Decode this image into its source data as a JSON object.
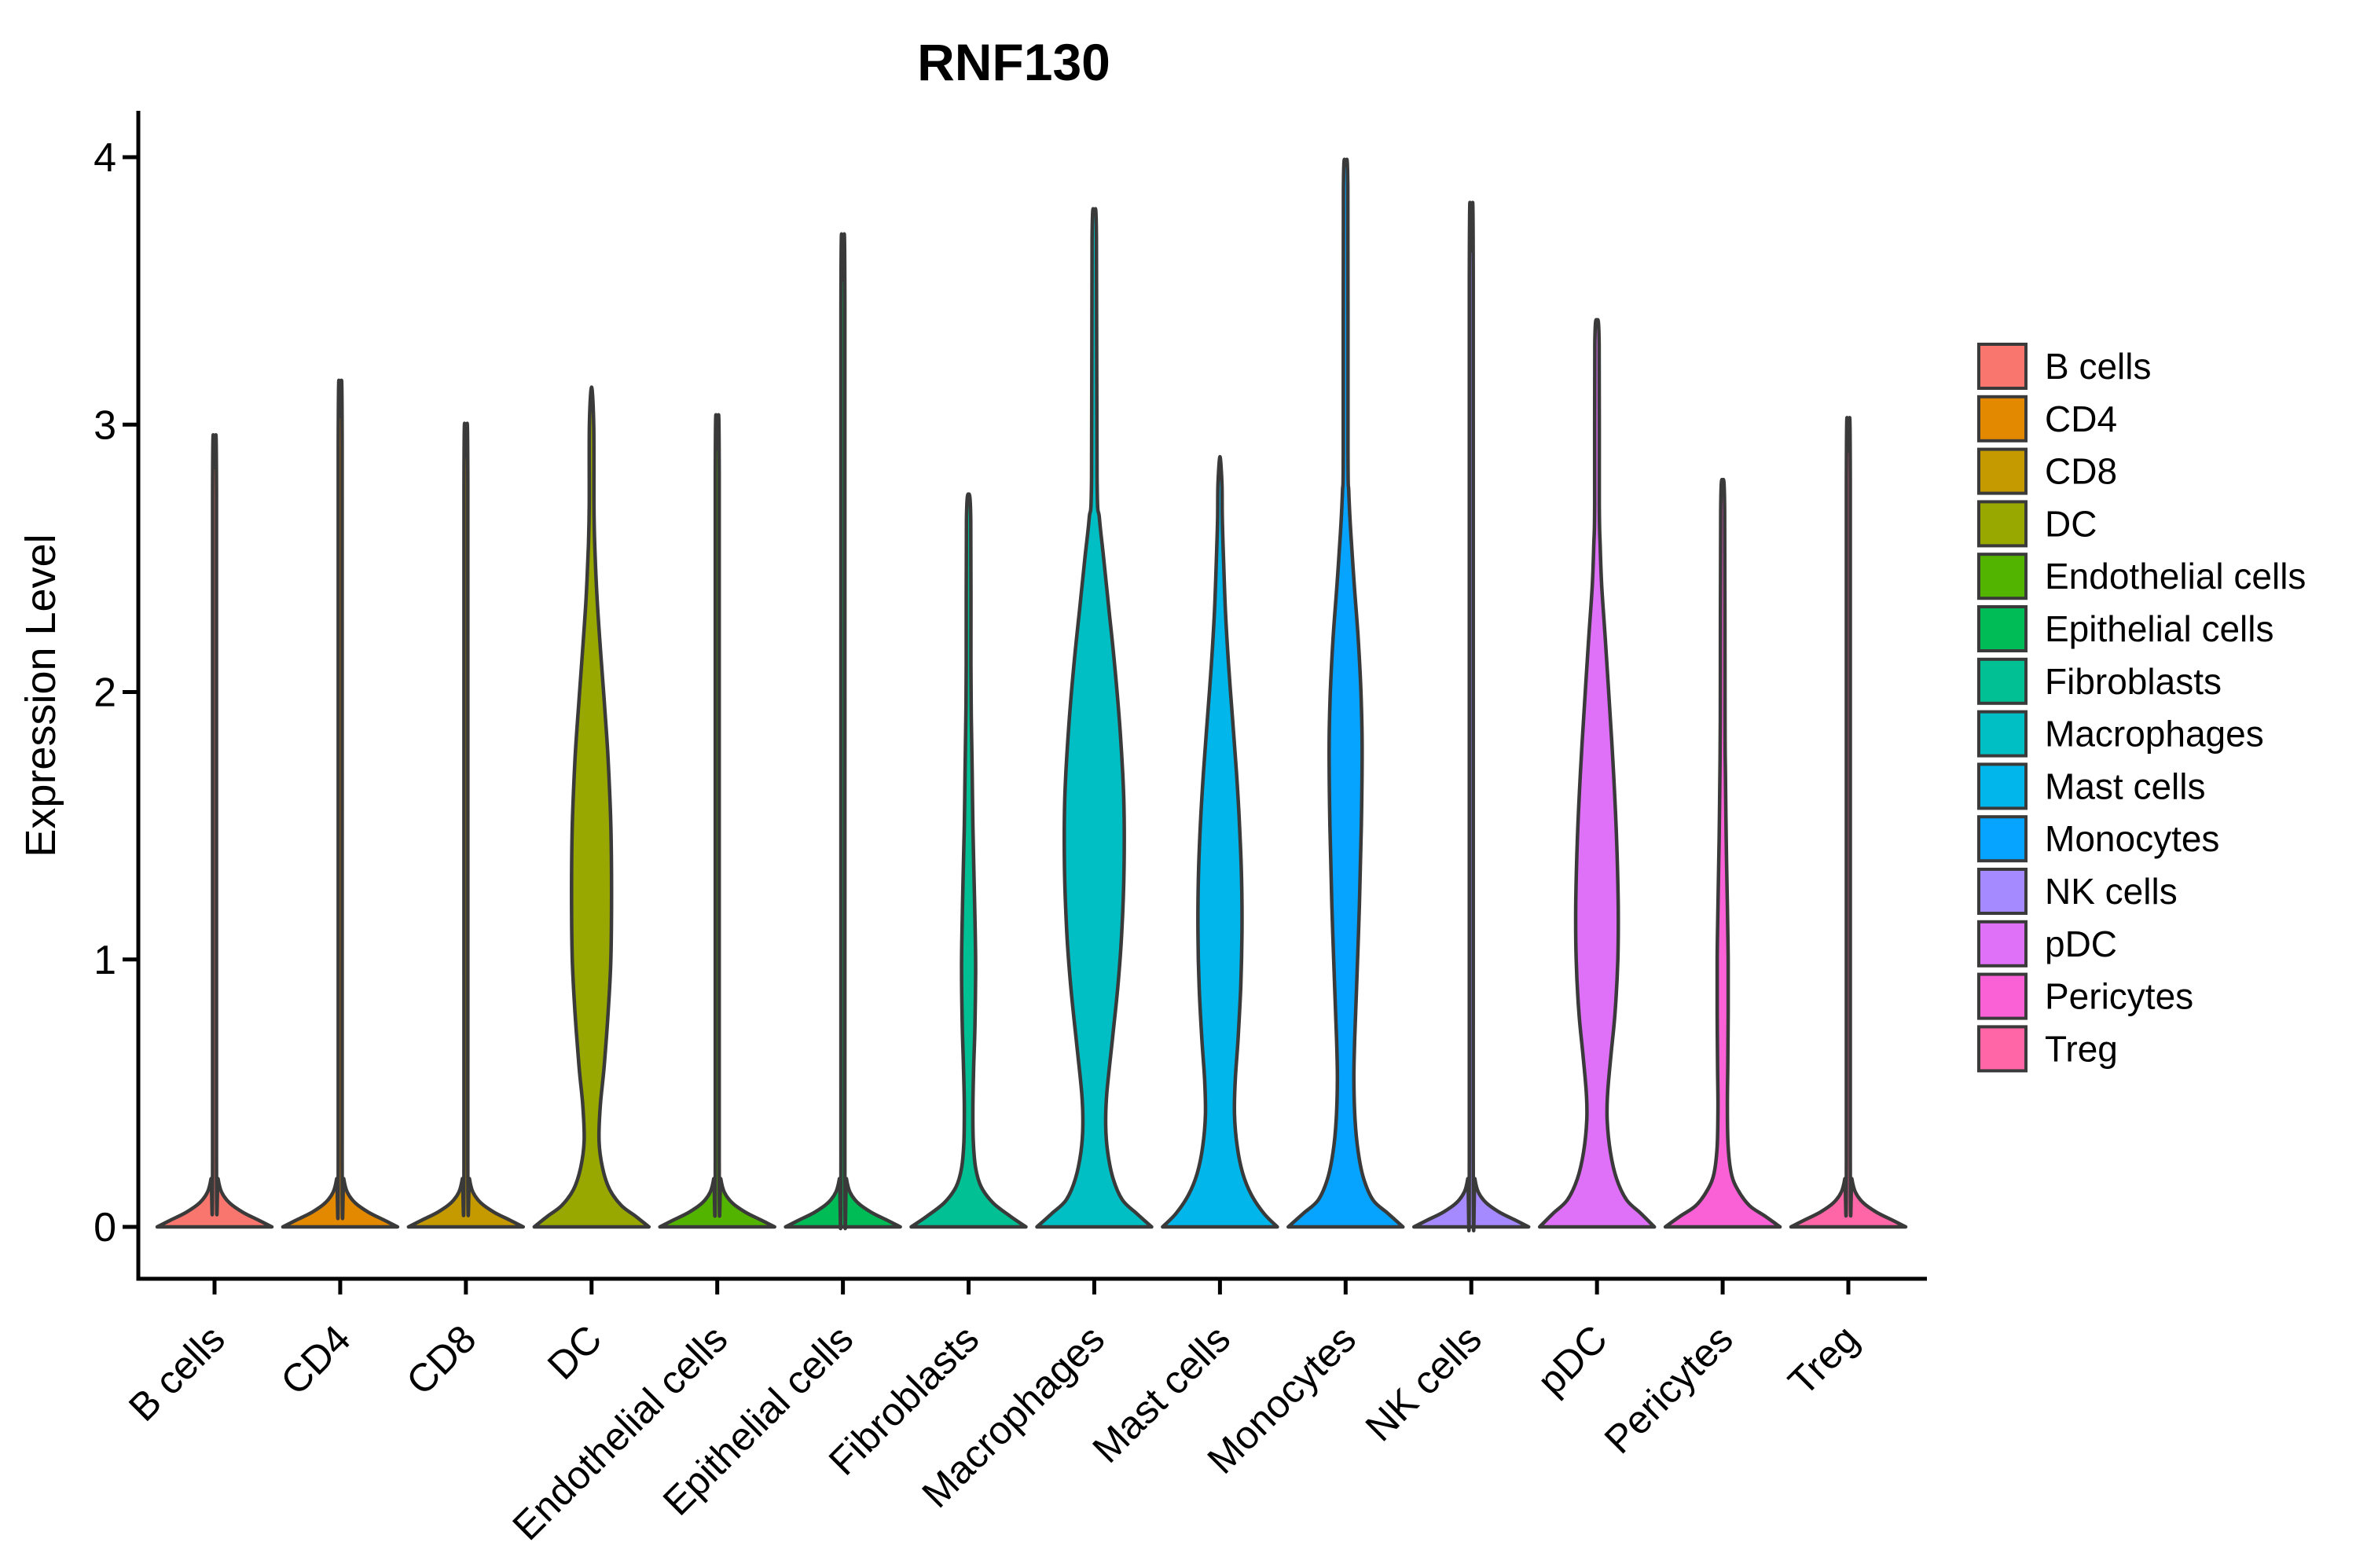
{
  "title": "RNF130",
  "chart_data": {
    "type": "violin",
    "title": "RNF130",
    "xlabel": "",
    "ylabel": "Expression Level",
    "ylim": [
      0,
      4
    ],
    "y_ticks": [
      0,
      1,
      2,
      3,
      4
    ],
    "x_tick_rotation_deg": 45,
    "grid": false,
    "legend_position": "right",
    "background": "#FFFFFF",
    "outline_color": "#3A3A3A",
    "categories": [
      "B cells",
      "CD4",
      "CD8",
      "DC",
      "Endothelial cells",
      "Epithelial cells",
      "Fibroblasts",
      "Macrophages",
      "Mast cells",
      "Monocytes",
      "NK cells",
      "pDC",
      "Pericytes",
      "Treg"
    ],
    "series": [
      {
        "name": "B cells",
        "color": "#F8766D",
        "max_expression": 2.84,
        "density_profile": [
          [
            0,
            1
          ],
          [
            0.025,
            0.77
          ],
          [
            0.055,
            0.49
          ],
          [
            0.09,
            0.26
          ],
          [
            0.13,
            0.123
          ],
          [
            0.18,
            0.062
          ],
          [
            0.25,
            0.034
          ],
          [
            2.74,
            0.034
          ],
          [
            2.84,
            0
          ]
        ]
      },
      {
        "name": "CD4",
        "color": "#E38900",
        "max_expression": 3.03,
        "density_profile": [
          [
            0,
            1
          ],
          [
            0.025,
            0.77
          ],
          [
            0.055,
            0.49
          ],
          [
            0.09,
            0.26
          ],
          [
            0.13,
            0.123
          ],
          [
            0.18,
            0.062
          ],
          [
            0.25,
            0.034
          ],
          [
            2.93,
            0.034
          ],
          [
            3.03,
            0
          ]
        ]
      },
      {
        "name": "CD8",
        "color": "#C49A00",
        "max_expression": 2.88,
        "density_profile": [
          [
            0,
            1
          ],
          [
            0.025,
            0.77
          ],
          [
            0.055,
            0.49
          ],
          [
            0.09,
            0.26
          ],
          [
            0.13,
            0.123
          ],
          [
            0.18,
            0.062
          ],
          [
            0.25,
            0.034
          ],
          [
            2.78,
            0.034
          ],
          [
            2.88,
            0
          ]
        ]
      },
      {
        "name": "DC",
        "color": "#99A800",
        "max_expression": 3.14,
        "density_profile": [
          [
            0,
            1
          ],
          [
            0.04,
            0.767
          ],
          [
            0.08,
            0.52
          ],
          [
            0.14,
            0.315
          ],
          [
            0.22,
            0.192
          ],
          [
            0.32,
            0.13
          ],
          [
            0.45,
            0.151
          ],
          [
            0.6,
            0.219
          ],
          [
            0.8,
            0.288
          ],
          [
            1.0,
            0.336
          ],
          [
            1.25,
            0.349
          ],
          [
            1.5,
            0.336
          ],
          [
            1.75,
            0.288
          ],
          [
            1.95,
            0.226
          ],
          [
            2.15,
            0.158
          ],
          [
            2.35,
            0.096
          ],
          [
            2.55,
            0.055
          ],
          [
            2.7,
            0.041
          ],
          [
            3.0,
            0.038
          ],
          [
            3.14,
            0
          ]
        ]
      },
      {
        "name": "Endothelial cells",
        "color": "#53B400",
        "max_expression": 2.91,
        "density_profile": [
          [
            0,
            1
          ],
          [
            0.025,
            0.77
          ],
          [
            0.055,
            0.49
          ],
          [
            0.09,
            0.26
          ],
          [
            0.13,
            0.123
          ],
          [
            0.18,
            0.062
          ],
          [
            0.25,
            0.034
          ],
          [
            2.81,
            0.034
          ],
          [
            2.91,
            0
          ]
        ]
      },
      {
        "name": "Epithelial cells",
        "color": "#00BC56",
        "max_expression": 3.54,
        "density_profile": [
          [
            0,
            1
          ],
          [
            0.025,
            0.77
          ],
          [
            0.055,
            0.49
          ],
          [
            0.09,
            0.26
          ],
          [
            0.13,
            0.123
          ],
          [
            0.18,
            0.062
          ],
          [
            0.25,
            0.034
          ],
          [
            3.44,
            0.034
          ],
          [
            3.54,
            0
          ]
        ]
      },
      {
        "name": "Fibroblasts",
        "color": "#00C094",
        "max_expression": 2.74,
        "density_profile": [
          [
            0,
            1
          ],
          [
            0.04,
            0.726
          ],
          [
            0.09,
            0.425
          ],
          [
            0.15,
            0.219
          ],
          [
            0.22,
            0.123
          ],
          [
            0.32,
            0.082
          ],
          [
            0.45,
            0.075
          ],
          [
            0.6,
            0.089
          ],
          [
            0.75,
            0.11
          ],
          [
            0.95,
            0.123
          ],
          [
            1.1,
            0.116
          ],
          [
            1.3,
            0.096
          ],
          [
            1.5,
            0.075
          ],
          [
            1.7,
            0.062
          ],
          [
            1.9,
            0.048
          ],
          [
            2.1,
            0.041
          ],
          [
            2.64,
            0.038
          ],
          [
            2.74,
            0
          ]
        ]
      },
      {
        "name": "Macrophages",
        "color": "#00BFC4",
        "max_expression": 3.79,
        "density_profile": [
          [
            0,
            1
          ],
          [
            0.05,
            0.74
          ],
          [
            0.1,
            0.493
          ],
          [
            0.18,
            0.329
          ],
          [
            0.28,
            0.233
          ],
          [
            0.38,
            0.199
          ],
          [
            0.5,
            0.219
          ],
          [
            0.7,
            0.315
          ],
          [
            0.9,
            0.411
          ],
          [
            1.1,
            0.479
          ],
          [
            1.35,
            0.52
          ],
          [
            1.6,
            0.514
          ],
          [
            1.85,
            0.452
          ],
          [
            2.1,
            0.356
          ],
          [
            2.3,
            0.26
          ],
          [
            2.5,
            0.164
          ],
          [
            2.65,
            0.089
          ],
          [
            2.8,
            0.048
          ],
          [
            3.7,
            0.038
          ],
          [
            3.79,
            0
          ]
        ]
      },
      {
        "name": "Mast cells",
        "color": "#00B6EB",
        "max_expression": 2.88,
        "density_profile": [
          [
            0,
            1
          ],
          [
            0.05,
            0.767
          ],
          [
            0.12,
            0.548
          ],
          [
            0.2,
            0.397
          ],
          [
            0.3,
            0.301
          ],
          [
            0.42,
            0.253
          ],
          [
            0.55,
            0.267
          ],
          [
            0.7,
            0.315
          ],
          [
            0.9,
            0.363
          ],
          [
            1.1,
            0.384
          ],
          [
            1.3,
            0.377
          ],
          [
            1.5,
            0.342
          ],
          [
            1.7,
            0.288
          ],
          [
            1.9,
            0.219
          ],
          [
            2.1,
            0.151
          ],
          [
            2.3,
            0.096
          ],
          [
            2.5,
            0.062
          ],
          [
            2.65,
            0.041
          ],
          [
            2.78,
            0.034
          ],
          [
            2.88,
            0
          ]
        ]
      },
      {
        "name": "Monocytes",
        "color": "#06A4FF",
        "max_expression": 3.97,
        "density_profile": [
          [
            0,
            1
          ],
          [
            0.05,
            0.74
          ],
          [
            0.1,
            0.479
          ],
          [
            0.18,
            0.315
          ],
          [
            0.28,
            0.219
          ],
          [
            0.4,
            0.164
          ],
          [
            0.55,
            0.144
          ],
          [
            0.7,
            0.158
          ],
          [
            0.9,
            0.192
          ],
          [
            1.2,
            0.24
          ],
          [
            1.5,
            0.274
          ],
          [
            1.8,
            0.288
          ],
          [
            2.0,
            0.267
          ],
          [
            2.2,
            0.219
          ],
          [
            2.4,
            0.151
          ],
          [
            2.6,
            0.089
          ],
          [
            2.75,
            0.055
          ],
          [
            2.9,
            0.041
          ],
          [
            3.88,
            0.038
          ],
          [
            3.97,
            0
          ]
        ]
      },
      {
        "name": "NK cells",
        "color": "#A58AFF",
        "max_expression": 3.65,
        "density_profile": [
          [
            0,
            1
          ],
          [
            0.025,
            0.77
          ],
          [
            0.055,
            0.49
          ],
          [
            0.09,
            0.26
          ],
          [
            0.13,
            0.123
          ],
          [
            0.18,
            0.062
          ],
          [
            0.25,
            0.034
          ],
          [
            3.55,
            0.034
          ],
          [
            3.65,
            0
          ]
        ]
      },
      {
        "name": "pDC",
        "color": "#DF70F8",
        "max_expression": 3.39,
        "density_profile": [
          [
            0,
            1
          ],
          [
            0.05,
            0.767
          ],
          [
            0.1,
            0.52
          ],
          [
            0.18,
            0.342
          ],
          [
            0.28,
            0.233
          ],
          [
            0.4,
            0.178
          ],
          [
            0.5,
            0.185
          ],
          [
            0.65,
            0.247
          ],
          [
            0.8,
            0.315
          ],
          [
            1.0,
            0.363
          ],
          [
            1.2,
            0.37
          ],
          [
            1.45,
            0.342
          ],
          [
            1.7,
            0.288
          ],
          [
            1.95,
            0.219
          ],
          [
            2.2,
            0.144
          ],
          [
            2.4,
            0.082
          ],
          [
            2.55,
            0.055
          ],
          [
            2.7,
            0.041
          ],
          [
            3.3,
            0.038
          ],
          [
            3.39,
            0
          ]
        ]
      },
      {
        "name": "Pericytes",
        "color": "#FB61D7",
        "max_expression": 2.79,
        "density_profile": [
          [
            0,
            1
          ],
          [
            0.04,
            0.74
          ],
          [
            0.08,
            0.466
          ],
          [
            0.14,
            0.26
          ],
          [
            0.2,
            0.151
          ],
          [
            0.3,
            0.096
          ],
          [
            0.45,
            0.082
          ],
          [
            0.6,
            0.089
          ],
          [
            0.8,
            0.096
          ],
          [
            1.0,
            0.096
          ],
          [
            1.2,
            0.082
          ],
          [
            1.45,
            0.062
          ],
          [
            1.7,
            0.048
          ],
          [
            1.9,
            0.041
          ],
          [
            2.68,
            0.034
          ],
          [
            2.79,
            0
          ]
        ]
      },
      {
        "name": "Treg",
        "color": "#FF66A8",
        "max_expression": 2.9,
        "density_profile": [
          [
            0,
            1
          ],
          [
            0.025,
            0.77
          ],
          [
            0.055,
            0.49
          ],
          [
            0.09,
            0.26
          ],
          [
            0.13,
            0.123
          ],
          [
            0.18,
            0.062
          ],
          [
            0.25,
            0.034
          ],
          [
            2.8,
            0.034
          ],
          [
            2.9,
            0
          ]
        ]
      }
    ]
  }
}
